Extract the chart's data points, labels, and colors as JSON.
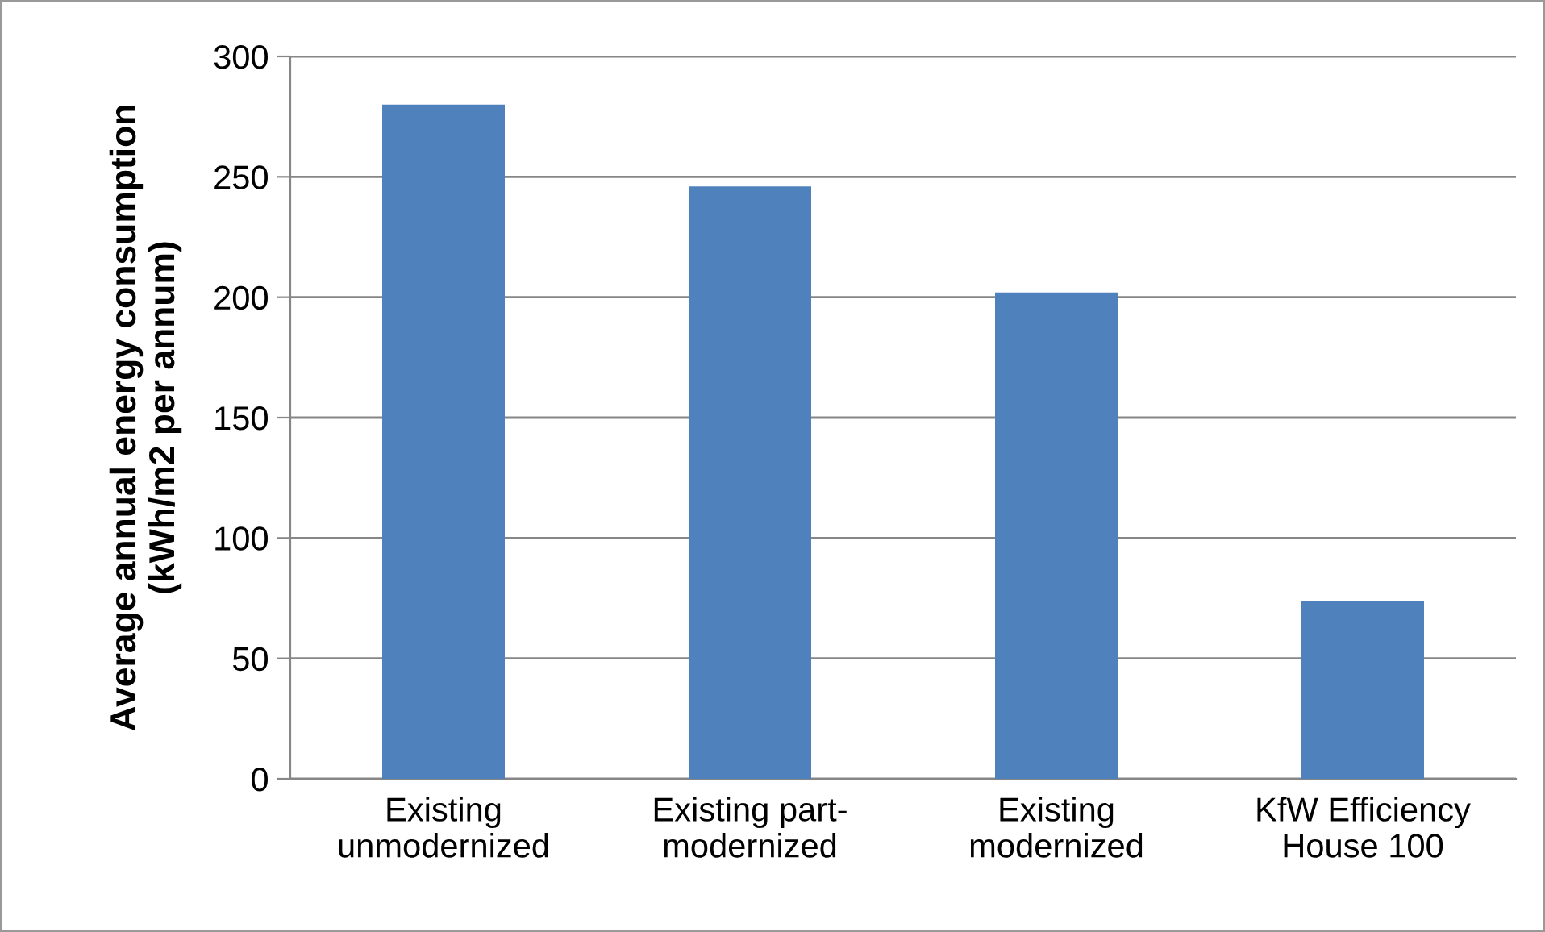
{
  "chart_data": {
    "type": "bar",
    "ylabel": "Average annual energy consumption\n(kWh/m2 per annum)",
    "categories": [
      "Existing\nunmodernized",
      "Existing part-\nmodernized",
      "Existing\nmodernized",
      "KfW Efficiency\nHouse 100"
    ],
    "values": [
      280,
      246,
      202,
      74
    ],
    "color": "#4f81bd",
    "ylim": [
      0,
      300
    ],
    "yticks": [
      0,
      50,
      100,
      150,
      200,
      250,
      300
    ],
    "grid": "y"
  }
}
